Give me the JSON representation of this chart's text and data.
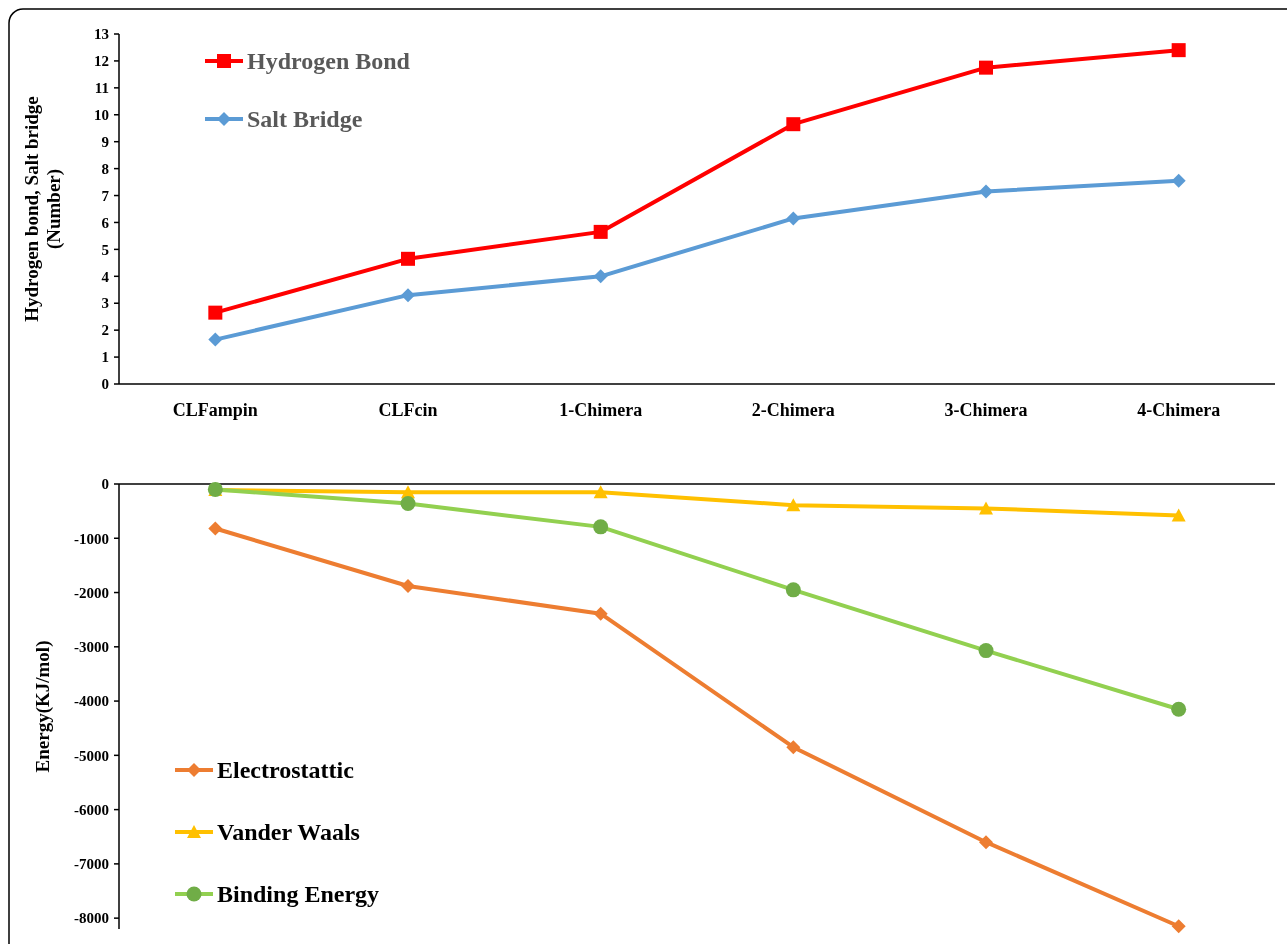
{
  "chart_data": [
    {
      "type": "line",
      "ylabel": "Hydrogen bond, Salt bridge\n(Number)",
      "categories": [
        "CLFampin",
        "CLFcin",
        "1-Chimera",
        "2-Chimera",
        "3-Chimera",
        "4-Chimera"
      ],
      "ylim": [
        0,
        13
      ],
      "yticks": [
        0,
        1,
        2,
        3,
        4,
        5,
        6,
        7,
        8,
        9,
        10,
        11,
        12,
        13
      ],
      "legend": "top left",
      "grid": false,
      "series": [
        {
          "name": "Hydrogen Bond",
          "color": "#ff0000",
          "marker": "square",
          "values": [
            2.65,
            4.65,
            5.65,
            9.65,
            11.75,
            12.4
          ]
        },
        {
          "name": "Salt Bridge",
          "color": "#5b9bd5",
          "marker": "diamond",
          "values": [
            1.65,
            3.3,
            4.0,
            6.15,
            7.15,
            7.55
          ]
        }
      ]
    },
    {
      "type": "line",
      "ylabel": "Energy(KJ/mol)",
      "categories": [
        null,
        null,
        null,
        null,
        null,
        null
      ],
      "ylim": [
        -8200,
        0
      ],
      "yticks": [
        0,
        -1000,
        -2000,
        -3000,
        -4000,
        -5000,
        -6000,
        -7000,
        -8000
      ],
      "legend": "bottom left",
      "grid": false,
      "series": [
        {
          "name": "Electrostattic",
          "color": "#ed7d31",
          "marker": "diamond",
          "values": [
            -820,
            -1880,
            -2390,
            -4850,
            -6600,
            -8150
          ]
        },
        {
          "name": "Vander Waals",
          "color": "#ffc000",
          "marker": "triangle",
          "values": [
            -110,
            -150,
            -150,
            -390,
            -450,
            -580
          ]
        },
        {
          "name": "Binding Energy",
          "color": "#92d050",
          "marker": "circle",
          "values": [
            -100,
            -360,
            -790,
            -1950,
            -3070,
            -4150
          ]
        }
      ]
    }
  ]
}
